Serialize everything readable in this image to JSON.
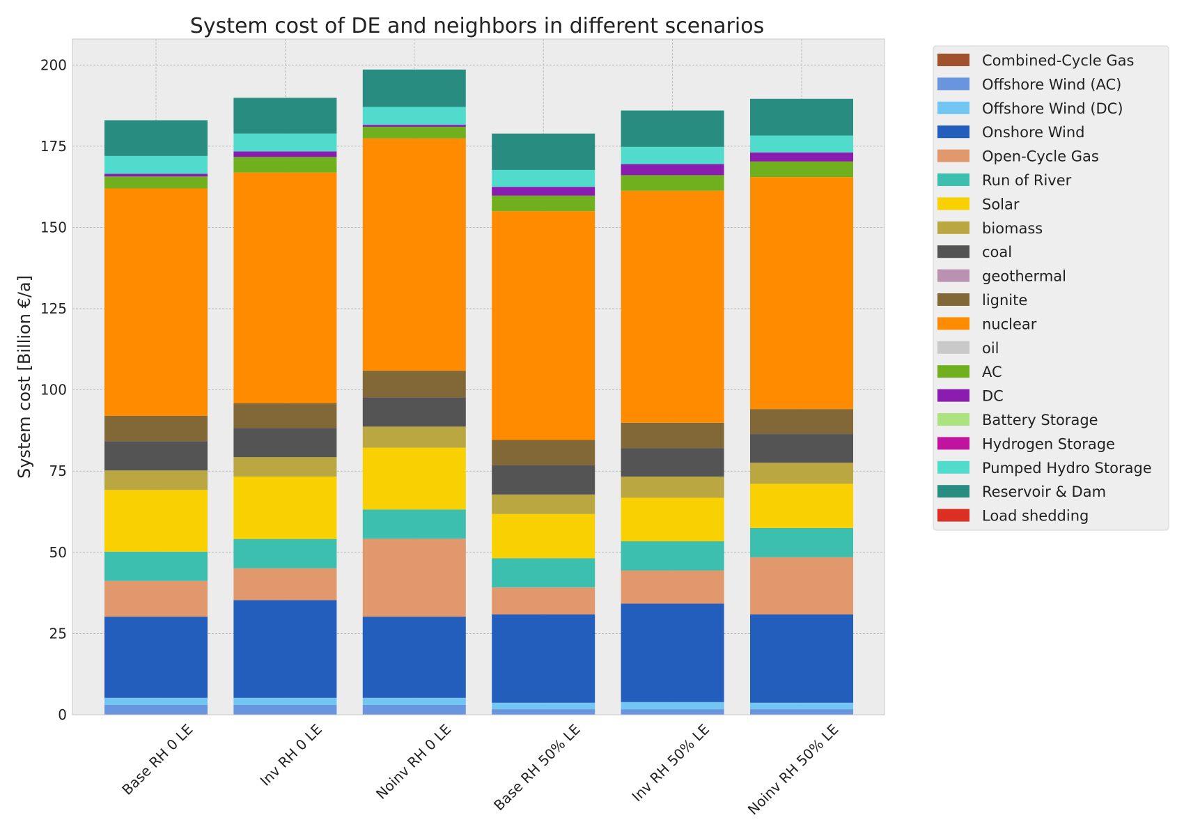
{
  "chart_data": {
    "type": "bar",
    "stacked": true,
    "title": "System cost of DE and neighbors in different scenarios",
    "xlabel": "",
    "ylabel": "System cost [Billion €/a]",
    "ylim": [
      0,
      208
    ],
    "yticks": [
      0,
      25,
      50,
      75,
      100,
      125,
      150,
      175,
      200
    ],
    "grid": true,
    "legend_position": "outside-right",
    "categories": [
      "Base RH 0 LE",
      "Inv RH 0 LE",
      "Noinv RH 0 LE",
      "Base RH 50% LE",
      "Inv RH 50% LE",
      "Noinv RH 50% LE"
    ],
    "series": [
      {
        "name": "Combined-Cycle Gas",
        "color": "#a0522d",
        "values": [
          0,
          0,
          0,
          0,
          0,
          0
        ]
      },
      {
        "name": "Offshore Wind (AC)",
        "color": "#6895dd",
        "values": [
          3.0,
          3.0,
          3.0,
          1.7,
          1.7,
          1.7
        ]
      },
      {
        "name": "Offshore Wind (DC)",
        "color": "#74c6f2",
        "values": [
          2.2,
          2.2,
          2.2,
          2.0,
          2.2,
          2.0
        ]
      },
      {
        "name": "Onshore Wind",
        "color": "#235ebc",
        "values": [
          25.0,
          30.1,
          25.0,
          27.2,
          30.3,
          27.2
        ]
      },
      {
        "name": "Open-Cycle Gas",
        "color": "#e0986c",
        "values": [
          11.0,
          9.8,
          24.0,
          8.3,
          10.2,
          17.6
        ]
      },
      {
        "name": "Run of River",
        "color": "#3dbfb0",
        "values": [
          9.0,
          9.0,
          9.0,
          9.0,
          9.0,
          9.0
        ]
      },
      {
        "name": "Solar",
        "color": "#f9d002",
        "values": [
          19.0,
          19.2,
          19.0,
          13.6,
          13.4,
          13.6
        ]
      },
      {
        "name": "biomass",
        "color": "#baa741",
        "values": [
          6.0,
          6.0,
          6.5,
          6.0,
          6.5,
          6.5
        ]
      },
      {
        "name": "coal",
        "color": "#545454",
        "values": [
          9.0,
          9.0,
          9.0,
          9.0,
          8.8,
          8.8
        ]
      },
      {
        "name": "geothermal",
        "color": "#ba91b1",
        "values": [
          0,
          0,
          0,
          0,
          0,
          0
        ]
      },
      {
        "name": "lignite",
        "color": "#826837",
        "values": [
          7.8,
          7.6,
          8.2,
          7.8,
          7.8,
          7.7
        ]
      },
      {
        "name": "nuclear",
        "color": "#ff8c00",
        "values": [
          70.0,
          71.0,
          71.5,
          70.4,
          71.4,
          71.4
        ]
      },
      {
        "name": "oil",
        "color": "#c9c9c9",
        "values": [
          0,
          0,
          0,
          0,
          0,
          0
        ]
      },
      {
        "name": "AC",
        "color": "#70af1d",
        "values": [
          3.7,
          4.8,
          3.6,
          4.8,
          4.8,
          4.8
        ]
      },
      {
        "name": "DC",
        "color": "#8a1caf",
        "values": [
          0.8,
          1.7,
          0.6,
          2.7,
          3.4,
          2.8
        ]
      },
      {
        "name": "Battery Storage",
        "color": "#ace37f",
        "values": [
          0,
          0,
          0,
          0,
          0,
          0
        ]
      },
      {
        "name": "Hydrogen Storage",
        "color": "#bf13a0",
        "values": [
          0,
          0,
          0,
          0,
          0,
          0
        ]
      },
      {
        "name": "Pumped Hydro Storage",
        "color": "#51dbcc",
        "values": [
          5.5,
          5.5,
          5.5,
          5.2,
          5.3,
          5.2
        ]
      },
      {
        "name": "Reservoir & Dam",
        "color": "#298c81",
        "values": [
          11.0,
          11.0,
          11.5,
          11.2,
          11.2,
          11.3
        ]
      },
      {
        "name": "Load shedding",
        "color": "#dd2e23",
        "values": [
          0,
          0,
          0,
          0,
          0,
          0
        ]
      }
    ]
  }
}
